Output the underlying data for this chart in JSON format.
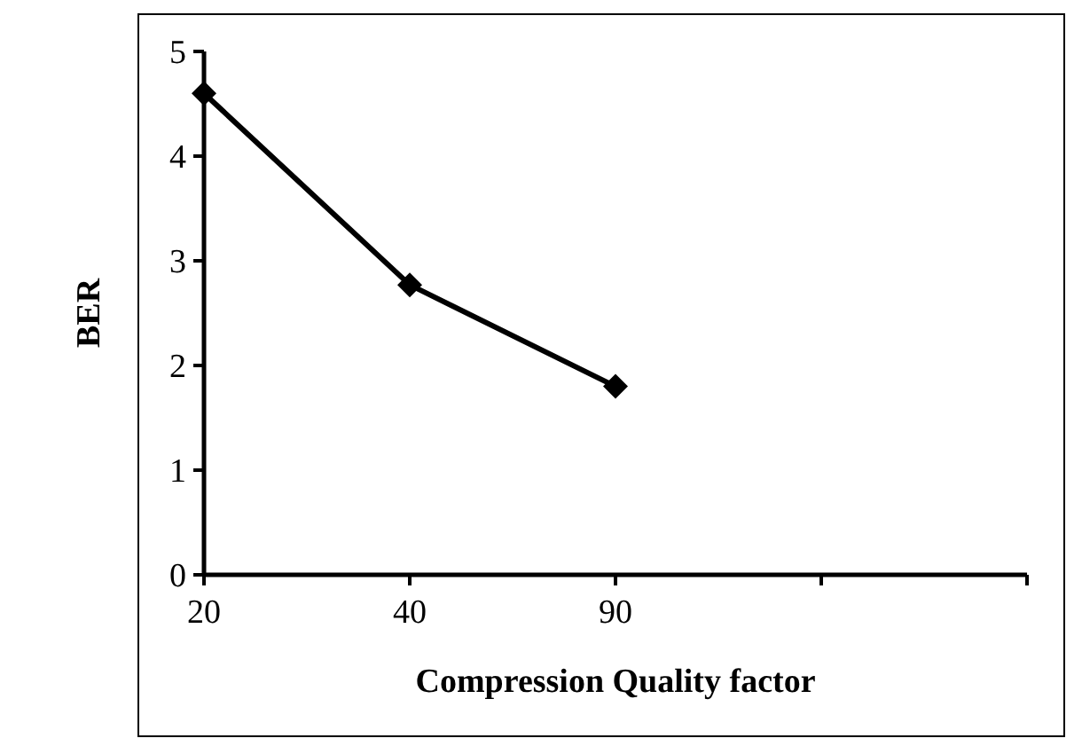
{
  "chart_data": {
    "type": "line",
    "xlabel": "Compression Quality factor",
    "ylabel": "BER",
    "categories": [
      "20",
      "40",
      "90",
      null
    ],
    "series": [
      {
        "color": "#000000",
        "values": [
          4.6,
          2.77,
          1.8,
          null
        ]
      }
    ],
    "ylim": [
      0,
      5
    ],
    "yticks": [
      0,
      1,
      2,
      3,
      4,
      5
    ],
    "marker": "diamond",
    "line_style": "solid",
    "grid": false
  }
}
